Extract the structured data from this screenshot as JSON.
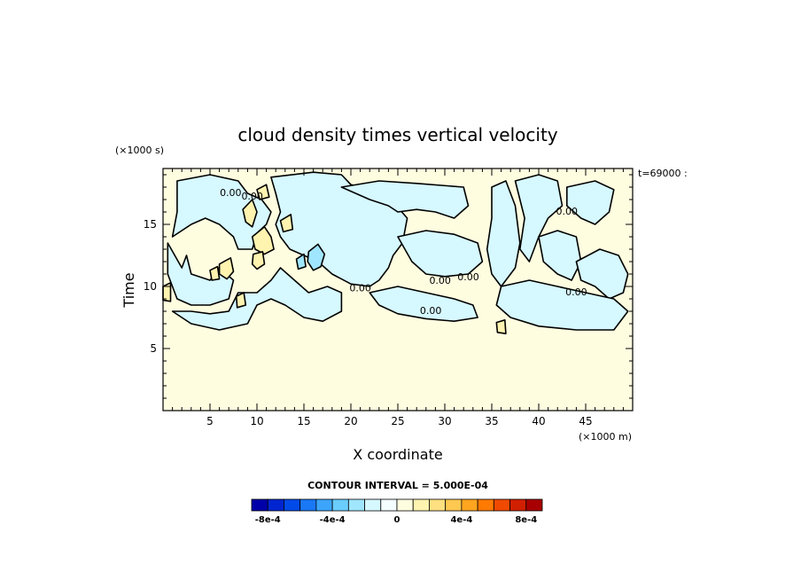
{
  "chart_data": {
    "type": "contour",
    "title": "cloud density times vertical velocity",
    "xlabel": "X coordinate",
    "ylabel": "Time",
    "x_unit": "(×1000 m)",
    "y_unit": "(×1000 s)",
    "annotation": "t=69000 :",
    "xlim": [
      0,
      50
    ],
    "ylim": [
      0,
      19.5
    ],
    "xticks": [
      5,
      10,
      15,
      20,
      25,
      30,
      35,
      40,
      45
    ],
    "yticks": [
      5,
      10,
      15
    ],
    "contour_interval_text": "CONTOUR INTERVAL = 5.000E-04",
    "contour_labels": [
      {
        "text": "0.00",
        "x": 7.2,
        "y": 17.3
      },
      {
        "text": "0.00",
        "x": 9.5,
        "y": 17.0
      },
      {
        "text": "0.00",
        "x": 43.0,
        "y": 15.8
      },
      {
        "text": "0.00",
        "x": 28.5,
        "y": 7.8
      },
      {
        "text": "0.00",
        "x": 32.5,
        "y": 10.5
      },
      {
        "text": "0.00",
        "x": 29.5,
        "y": 10.2
      },
      {
        "text": "0.00",
        "x": 21.0,
        "y": 9.6
      },
      {
        "text": "0.00",
        "x": 44.0,
        "y": 9.3
      }
    ],
    "regions": {
      "negative": [
        [
          [
            1.5,
            18.5
          ],
          [
            5,
            19
          ],
          [
            8,
            18.5
          ],
          [
            9,
            17.5
          ],
          [
            10.5,
            17
          ],
          [
            11.5,
            16
          ],
          [
            11,
            15
          ],
          [
            10,
            14.3
          ],
          [
            9.5,
            13
          ],
          [
            8,
            13
          ],
          [
            7.5,
            14
          ],
          [
            6,
            15
          ],
          [
            4.5,
            15.5
          ],
          [
            3,
            15
          ],
          [
            1,
            14
          ],
          [
            1.5,
            16
          ]
        ],
        [
          [
            0.5,
            13.5
          ],
          [
            2,
            11.5
          ],
          [
            2.5,
            12.5
          ],
          [
            3,
            11
          ],
          [
            5,
            10.5
          ],
          [
            6,
            11.5
          ],
          [
            7.5,
            10.5
          ],
          [
            7,
            9
          ],
          [
            5,
            8.5
          ],
          [
            3,
            8.5
          ],
          [
            1.5,
            9
          ],
          [
            0.5,
            11
          ]
        ],
        [
          [
            1,
            8
          ],
          [
            3,
            7
          ],
          [
            6,
            6.5
          ],
          [
            9,
            7
          ],
          [
            10,
            8.5
          ],
          [
            11.5,
            9
          ],
          [
            13,
            8.5
          ],
          [
            15,
            7.5
          ],
          [
            17,
            7.2
          ],
          [
            19,
            8
          ],
          [
            19,
            9.5
          ],
          [
            17.5,
            10
          ],
          [
            15.5,
            9.5
          ],
          [
            14,
            10.5
          ],
          [
            12.5,
            11.5
          ],
          [
            11.5,
            10.5
          ],
          [
            10,
            9.5
          ],
          [
            8,
            9.5
          ],
          [
            7,
            8
          ],
          [
            5,
            7.8
          ],
          [
            3,
            8
          ]
        ],
        [
          [
            11.5,
            18.8
          ],
          [
            16,
            19.2
          ],
          [
            19,
            19
          ],
          [
            20,
            18.2
          ],
          [
            23.5,
            17.5
          ],
          [
            24.5,
            16.8
          ],
          [
            26,
            15.5
          ],
          [
            25.5,
            13.5
          ],
          [
            24.5,
            12.5
          ],
          [
            24,
            11.5
          ],
          [
            23,
            10.5
          ],
          [
            22,
            10
          ],
          [
            20,
            10.2
          ],
          [
            18,
            11
          ],
          [
            16.5,
            12
          ],
          [
            15,
            12.5
          ],
          [
            13.5,
            13
          ],
          [
            12.5,
            14
          ],
          [
            12,
            15
          ],
          [
            12.5,
            16
          ],
          [
            12,
            17.5
          ]
        ],
        [
          [
            19,
            18
          ],
          [
            23,
            18.5
          ],
          [
            27,
            18.3
          ],
          [
            32,
            18
          ],
          [
            32.5,
            16.5
          ],
          [
            31,
            15.5
          ],
          [
            29,
            16
          ],
          [
            27,
            16.2
          ],
          [
            25,
            16
          ],
          [
            24,
            16.5
          ],
          [
            22,
            17
          ]
        ],
        [
          [
            25,
            14
          ],
          [
            28,
            14.5
          ],
          [
            31,
            14.2
          ],
          [
            33.5,
            13.5
          ],
          [
            34,
            12
          ],
          [
            32.5,
            11
          ],
          [
            30,
            10.8
          ],
          [
            28,
            11
          ],
          [
            26.5,
            12
          ]
        ],
        [
          [
            22,
            9.5
          ],
          [
            25,
            10
          ],
          [
            28,
            9.5
          ],
          [
            31,
            9
          ],
          [
            33,
            8.5
          ],
          [
            33.5,
            7.5
          ],
          [
            31,
            7.2
          ],
          [
            28,
            7.4
          ],
          [
            25,
            7.8
          ],
          [
            23,
            8.5
          ]
        ],
        [
          [
            35,
            18
          ],
          [
            36.5,
            18.5
          ],
          [
            37.5,
            16.5
          ],
          [
            38,
            13.5
          ],
          [
            37.5,
            11.5
          ],
          [
            36,
            10
          ],
          [
            35,
            11
          ],
          [
            34.5,
            13
          ],
          [
            35,
            15.5
          ]
        ],
        [
          [
            37.5,
            18.5
          ],
          [
            40,
            19
          ],
          [
            42,
            18.5
          ],
          [
            42.5,
            16.5
          ],
          [
            41,
            15.5
          ],
          [
            40,
            14
          ],
          [
            39,
            12
          ],
          [
            38,
            13
          ],
          [
            38.5,
            15.5
          ]
        ],
        [
          [
            43,
            18
          ],
          [
            46,
            18.5
          ],
          [
            48,
            17.8
          ],
          [
            47.5,
            16
          ],
          [
            46,
            15
          ],
          [
            44.5,
            15.5
          ],
          [
            43,
            16.5
          ]
        ],
        [
          [
            40,
            14
          ],
          [
            42,
            14.5
          ],
          [
            44,
            14
          ],
          [
            44.5,
            12
          ],
          [
            43.5,
            10.5
          ],
          [
            42,
            11
          ],
          [
            40.5,
            12
          ]
        ],
        [
          [
            44,
            12
          ],
          [
            46.5,
            13
          ],
          [
            48.5,
            12.5
          ],
          [
            49.5,
            11
          ],
          [
            49,
            9.5
          ],
          [
            47.5,
            9
          ],
          [
            46,
            10
          ],
          [
            44.5,
            10.5
          ]
        ],
        [
          [
            36,
            10
          ],
          [
            39,
            10.5
          ],
          [
            42,
            10
          ],
          [
            45,
            9.5
          ],
          [
            48,
            9
          ],
          [
            49.5,
            8
          ],
          [
            48,
            6.5
          ],
          [
            44,
            6.5
          ],
          [
            40,
            6.8
          ],
          [
            37,
            7.5
          ],
          [
            35.5,
            8.5
          ]
        ]
      ],
      "positive": [
        [
          [
            8.5,
            16.2
          ],
          [
            9.5,
            17
          ],
          [
            10,
            16
          ],
          [
            9.5,
            14.8
          ],
          [
            8.8,
            15.2
          ]
        ],
        [
          [
            9.5,
            14
          ],
          [
            10.8,
            14.8
          ],
          [
            11.5,
            14
          ],
          [
            11.8,
            13
          ],
          [
            10.8,
            12.6
          ],
          [
            9.8,
            13
          ]
        ],
        [
          [
            9.6,
            12.6
          ],
          [
            10.6,
            12.8
          ],
          [
            10.8,
            11.8
          ],
          [
            10,
            11.4
          ],
          [
            9.5,
            11.8
          ]
        ],
        [
          [
            6,
            11.8
          ],
          [
            7.2,
            12.3
          ],
          [
            7.5,
            11.2
          ],
          [
            6.8,
            10.6
          ],
          [
            6,
            11
          ]
        ],
        [
          [
            5,
            11.3
          ],
          [
            5.8,
            11.6
          ],
          [
            6,
            10.6
          ],
          [
            5.2,
            10.5
          ]
        ],
        [
          [
            12.5,
            15.3
          ],
          [
            13.6,
            15.8
          ],
          [
            13.8,
            14.6
          ],
          [
            12.8,
            14.4
          ]
        ],
        [
          [
            7.8,
            9.2
          ],
          [
            8.6,
            9.5
          ],
          [
            8.8,
            8.5
          ],
          [
            7.9,
            8.3
          ]
        ],
        [
          [
            0,
            10
          ],
          [
            0.8,
            10.3
          ],
          [
            0.8,
            8.8
          ],
          [
            0,
            8.9
          ]
        ],
        [
          [
            35.5,
            7.1
          ],
          [
            36.4,
            7.3
          ],
          [
            36.5,
            6.2
          ],
          [
            35.6,
            6.3
          ]
        ],
        [
          [
            10,
            17.8
          ],
          [
            11,
            18.2
          ],
          [
            11.3,
            17.2
          ],
          [
            10.3,
            17
          ]
        ]
      ],
      "darker_negative": [
        [
          [
            15.5,
            12.8
          ],
          [
            16.5,
            13.4
          ],
          [
            17.2,
            12.6
          ],
          [
            16.8,
            11.6
          ],
          [
            16,
            11.3
          ],
          [
            15.4,
            12
          ]
        ],
        [
          [
            14.2,
            12.2
          ],
          [
            15,
            12.6
          ],
          [
            15.2,
            11.6
          ],
          [
            14.4,
            11.4
          ]
        ]
      ]
    },
    "colorbar": {
      "colors": [
        "#0000a8",
        "#0025d0",
        "#004ae8",
        "#1a78f5",
        "#3ca5fb",
        "#6acdfd",
        "#a0e6ff",
        "#d6f8ff",
        "#f4fdff",
        "#fffde0",
        "#fff3b0",
        "#ffe080",
        "#ffc850",
        "#ffa520",
        "#ff7a00",
        "#f04a00",
        "#d02000",
        "#a80000"
      ],
      "tick_labels": [
        {
          "text": "-8e-4",
          "at": -0.0008
        },
        {
          "text": "-4e-4",
          "at": -0.0004
        },
        {
          "text": "0",
          "at": 0
        },
        {
          "text": "4e-4",
          "at": 0.0004
        },
        {
          "text": "8e-4",
          "at": 0.0008
        }
      ],
      "min": -0.0009,
      "max": 0.0009
    }
  }
}
